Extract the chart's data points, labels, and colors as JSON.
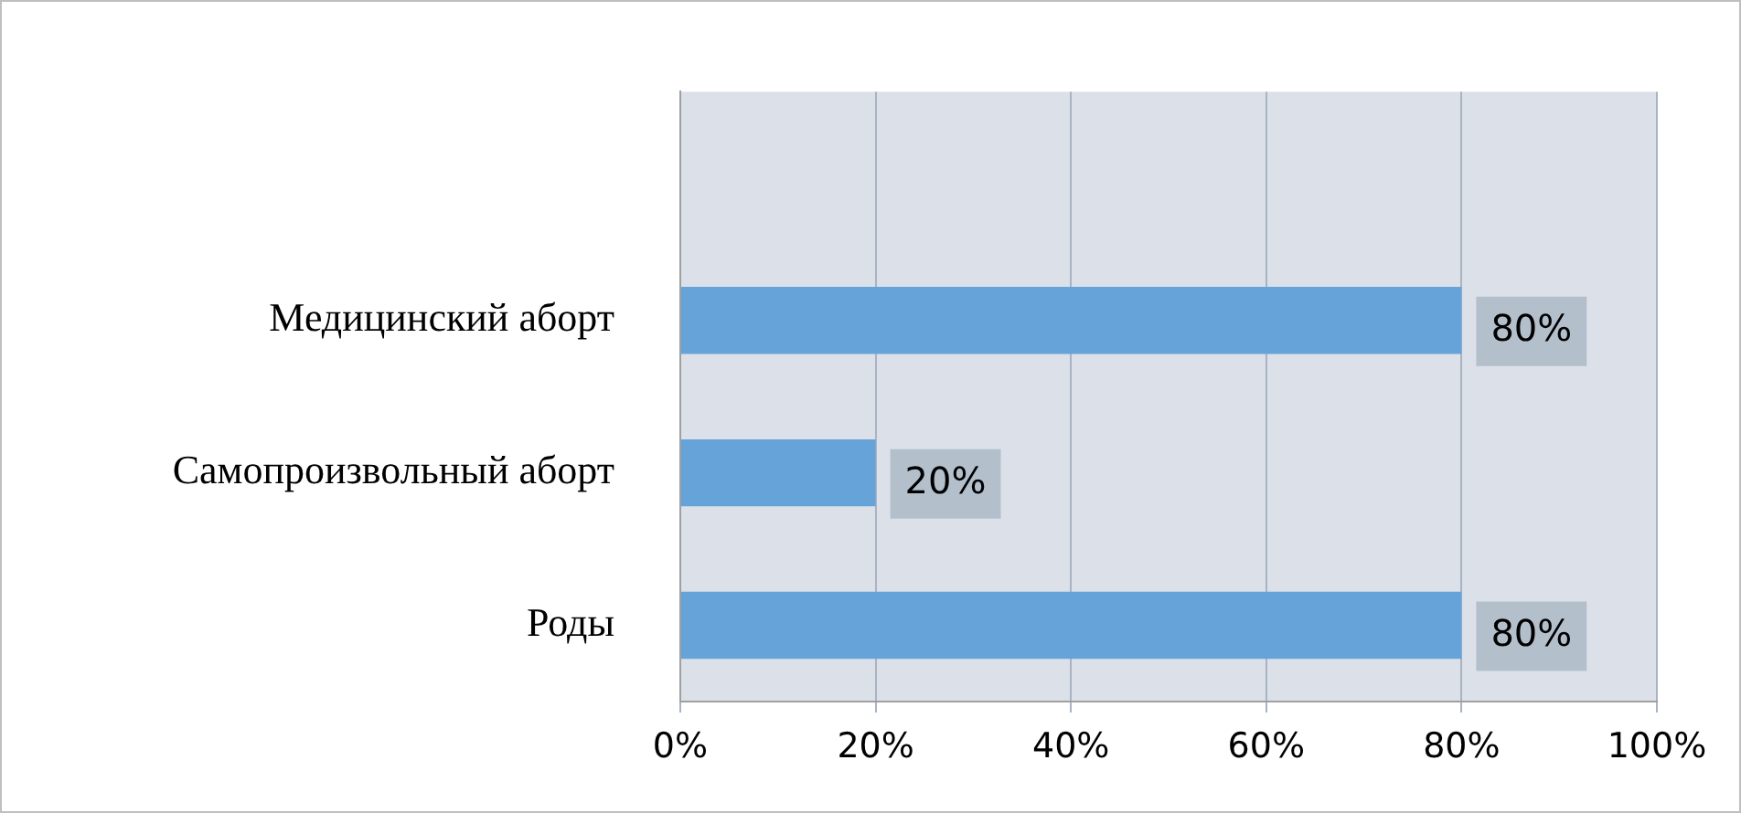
{
  "chart_data": {
    "type": "bar",
    "orientation": "horizontal",
    "categories": [
      null,
      "Медицинский аборт",
      "Самопроизвольный аборт",
      "Роды"
    ],
    "values": [
      null,
      80,
      20,
      80
    ],
    "value_labels": [
      null,
      "80%",
      "20%",
      "80%"
    ],
    "color": "#66a3d9",
    "xlim": [
      0,
      100
    ],
    "xticks": [
      {
        "value": 0,
        "label": "0%"
      },
      {
        "value": 20,
        "label": "20%"
      },
      {
        "value": 40,
        "label": "40%"
      },
      {
        "value": 60,
        "label": "60%"
      },
      {
        "value": 80,
        "label": "80%"
      },
      {
        "value": 100,
        "label": "100%"
      }
    ],
    "grid": "x",
    "legend": false
  }
}
